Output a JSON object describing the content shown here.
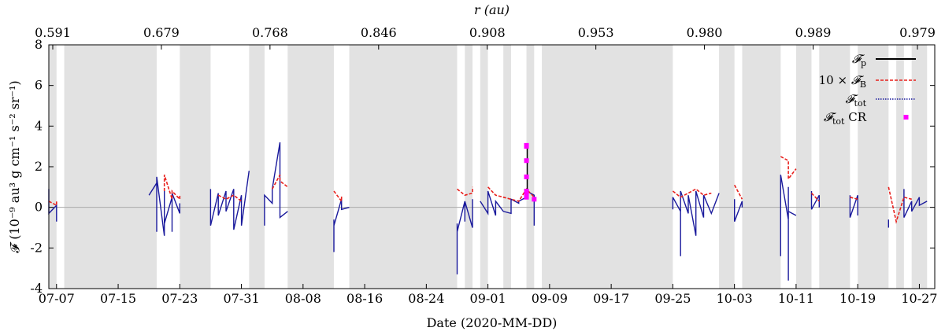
{
  "chart_data": {
    "type": "line",
    "xlabel": "Date (2020-MM-DD)",
    "ylabel": "𝓕 (10⁻⁹ au³ g cm⁻¹ s⁻² sr⁻¹)",
    "top_axis_label": "r (au)",
    "x_range": [
      "2020-07-06",
      "2020-10-29"
    ],
    "ylim": [
      -4,
      8
    ],
    "y_ticks": [
      -4,
      -2,
      0,
      2,
      4,
      6,
      8
    ],
    "x_ticks": [
      "07-07",
      "07-15",
      "07-23",
      "07-31",
      "08-08",
      "08-16",
      "08-24",
      "09-01",
      "09-09",
      "09-17",
      "09-25",
      "10-03",
      "10-11",
      "10-19",
      "10-27"
    ],
    "top_ticks": [
      "0.591",
      "0.679",
      "0.768",
      "0.846",
      "0.908",
      "0.953",
      "0.980",
      "0.989",
      "0.979"
    ],
    "zero_line": true,
    "legend_position": "top-right",
    "legend": [
      {
        "label_main": "𝓕",
        "label_sub": "p",
        "prefix": "",
        "style": "solid",
        "color": "#000000"
      },
      {
        "label_main": "𝓕",
        "label_sub": "B",
        "prefix": "10 × ",
        "style": "dashed",
        "color": "#e8201c"
      },
      {
        "label_main": "𝓕",
        "label_sub": "tot",
        "prefix": "",
        "style": "dotted",
        "color": "#1a1a9c"
      },
      {
        "label_main": "𝓕",
        "label_sub": "tot",
        "prefix": "",
        "suffix": " CR",
        "style": "marker",
        "color": "#ff00ff"
      }
    ],
    "shaded_intervals": [
      [
        "2020-07-06",
        "2020-07-07"
      ],
      [
        "2020-07-08",
        "2020-07-20"
      ],
      [
        "2020-07-23",
        "2020-07-27"
      ],
      [
        "2020-08-01",
        "2020-08-03"
      ],
      [
        "2020-08-06",
        "2020-08-12"
      ],
      [
        "2020-08-14",
        "2020-08-28"
      ],
      [
        "2020-08-29",
        "2020-08-30"
      ],
      [
        "2020-08-31",
        "2020-09-01"
      ],
      [
        "2020-09-03",
        "2020-09-04"
      ],
      [
        "2020-09-06",
        "2020-09-07"
      ],
      [
        "2020-09-08",
        "2020-09-25"
      ],
      [
        "2020-10-01",
        "2020-10-03"
      ],
      [
        "2020-10-04",
        "2020-10-09"
      ],
      [
        "2020-10-11",
        "2020-10-13"
      ],
      [
        "2020-10-14",
        "2020-10-18"
      ],
      [
        "2020-10-19",
        "2020-10-23"
      ],
      [
        "2020-10-24",
        "2020-10-25"
      ],
      [
        "2020-10-26",
        "2020-10-28"
      ]
    ],
    "series": [
      {
        "style": "dotted-blue",
        "segments": [
          {
            "x": [
              "2020-07-06",
              "2020-07-06",
              "2020-07-06",
              "2020-07-06",
              "2020-07-07",
              "2020-07-07",
              "2020-07-07",
              "2020-07-07"
            ],
            "y": [
              0.1,
              0.9,
              0.3,
              -0.3,
              0.1,
              -0.5,
              -0.3,
              -0.7
            ]
          },
          {
            "x": [
              "2020-07-19",
              "2020-07-20",
              "2020-07-20",
              "2020-07-20",
              "2020-07-21",
              "2020-07-21",
              "2020-07-21",
              "2020-07-22",
              "2020-07-22",
              "2020-07-22",
              "2020-07-23",
              "2020-07-23"
            ],
            "y": [
              0.6,
              1.2,
              -1.2,
              1.5,
              -1.4,
              0.9,
              -0.8,
              0.5,
              -1.2,
              0.7,
              -0.3,
              0.2
            ]
          },
          {
            "x": [
              "2020-07-27",
              "2020-07-27",
              "2020-07-28",
              "2020-07-28",
              "2020-07-29",
              "2020-07-29",
              "2020-07-30",
              "2020-07-30",
              "2020-07-31",
              "2020-07-31",
              "2020-08-01"
            ],
            "y": [
              0.9,
              -0.9,
              0.7,
              -0.4,
              0.8,
              -0.2,
              0.9,
              -1.1,
              0.6,
              -0.9,
              1.8
            ]
          },
          {
            "x": [
              "2020-08-03",
              "2020-08-03",
              "2020-08-04",
              "2020-08-04",
              "2020-08-05",
              "2020-08-05",
              "2020-08-05",
              "2020-08-06"
            ],
            "y": [
              -0.9,
              0.6,
              0.2,
              0.9,
              3.2,
              0.1,
              -0.5,
              -0.2
            ]
          },
          {
            "x": [
              "2020-08-12",
              "2020-08-12",
              "2020-08-12",
              "2020-08-13",
              "2020-08-13",
              "2020-08-14"
            ],
            "y": [
              -2.2,
              -0.6,
              -0.9,
              0.4,
              -0.1,
              0.0
            ]
          },
          {
            "x": [
              "2020-08-28",
              "2020-08-28",
              "2020-08-28",
              "2020-08-28",
              "2020-08-29",
              "2020-08-29",
              "2020-08-29",
              "2020-08-30",
              "2020-08-30"
            ],
            "y": [
              -0.8,
              -2.8,
              -3.3,
              -1.2,
              0.3,
              -0.7,
              0.3,
              -1.0,
              0.4
            ]
          },
          {
            "x": [
              "2020-08-31",
              "2020-09-01",
              "2020-09-01",
              "2020-09-02",
              "2020-09-02",
              "2020-09-03",
              "2020-09-04",
              "2020-09-04",
              "2020-09-05",
              "2020-09-05",
              "2020-09-06",
              "2020-09-06",
              "2020-09-07",
              "2020-09-07"
            ],
            "y": [
              0.3,
              -0.3,
              0.8,
              -0.4,
              0.3,
              -0.2,
              -0.3,
              0.4,
              0.2,
              0.3,
              0.5,
              0.8,
              0.6,
              -0.9
            ]
          },
          {
            "x": [
              "2020-09-25",
              "2020-09-25",
              "2020-09-26",
              "2020-09-26",
              "2020-09-26",
              "2020-09-27",
              "2020-09-27",
              "2020-09-28",
              "2020-09-28",
              "2020-09-29",
              "2020-09-29",
              "2020-09-30",
              "2020-10-01"
            ],
            "y": [
              -0.1,
              0.5,
              -0.2,
              -2.4,
              0.8,
              -0.3,
              0.6,
              -1.4,
              0.8,
              -0.5,
              0.6,
              -0.3,
              0.7
            ]
          },
          {
            "x": [
              "2020-10-03",
              "2020-10-03",
              "2020-10-04",
              "2020-10-04"
            ],
            "y": [
              0.4,
              -0.7,
              0.3,
              0.0
            ]
          },
          {
            "x": [
              "2020-10-09",
              "2020-10-09",
              "2020-10-09",
              "2020-10-10",
              "2020-10-10",
              "2020-10-10",
              "2020-10-10",
              "2020-10-11"
            ],
            "y": [
              0.7,
              -2.4,
              1.6,
              -0.6,
              1.0,
              -3.6,
              -0.2,
              -0.4
            ]
          },
          {
            "x": [
              "2020-10-13",
              "2020-10-13",
              "2020-10-14",
              "2020-10-14"
            ],
            "y": [
              0.8,
              -0.1,
              0.6,
              0.0
            ]
          },
          {
            "x": [
              "2020-10-18",
              "2020-10-18",
              "2020-10-19",
              "2020-10-19"
            ],
            "y": [
              0.6,
              -0.5,
              0.6,
              -0.4
            ]
          },
          {
            "x": [
              "2020-10-23",
              "2020-10-23"
            ],
            "y": [
              -0.6,
              -1.0
            ]
          },
          {
            "x": [
              "2020-10-25",
              "2020-10-25",
              "2020-10-26",
              "2020-10-26",
              "2020-10-27",
              "2020-10-27",
              "2020-10-28"
            ],
            "y": [
              0.9,
              -0.5,
              0.3,
              -0.2,
              0.5,
              0.1,
              0.3
            ]
          }
        ]
      },
      {
        "style": "dashed-red",
        "segments": [
          {
            "x": [
              "2020-07-06",
              "2020-07-07",
              "2020-07-07",
              "2020-07-07"
            ],
            "y": [
              0.3,
              0.1,
              0.3,
              0.2
            ]
          },
          {
            "x": [
              "2020-07-21",
              "2020-07-21",
              "2020-07-22",
              "2020-07-22",
              "2020-07-23",
              "2020-07-23"
            ],
            "y": [
              0.8,
              1.6,
              0.4,
              0.8,
              0.4,
              0.6
            ]
          },
          {
            "x": [
              "2020-07-28",
              "2020-07-29",
              "2020-07-30",
              "2020-07-31"
            ],
            "y": [
              0.6,
              0.4,
              0.6,
              0.3
            ]
          },
          {
            "x": [
              "2020-08-04",
              "2020-08-05",
              "2020-08-05",
              "2020-08-06"
            ],
            "y": [
              0.9,
              1.6,
              1.3,
              1.0
            ]
          },
          {
            "x": [
              "2020-08-12",
              "2020-08-13",
              "2020-08-13"
            ],
            "y": [
              0.8,
              0.3,
              0.6
            ]
          },
          {
            "x": [
              "2020-08-28",
              "2020-08-29",
              "2020-08-30",
              "2020-08-30"
            ],
            "y": [
              0.9,
              0.6,
              0.7,
              1.0
            ]
          },
          {
            "x": [
              "2020-09-01",
              "2020-09-02",
              "2020-09-03",
              "2020-09-05",
              "2020-09-06",
              "2020-09-07"
            ],
            "y": [
              1.0,
              0.6,
              0.5,
              0.3,
              0.9,
              0.5
            ]
          },
          {
            "x": [
              "2020-09-25",
              "2020-09-26",
              "2020-09-28",
              "2020-09-29",
              "2020-09-30"
            ],
            "y": [
              0.8,
              0.5,
              0.9,
              0.6,
              0.7
            ]
          },
          {
            "x": [
              "2020-10-03",
              "2020-10-04"
            ],
            "y": [
              1.1,
              0.4
            ]
          },
          {
            "x": [
              "2020-10-09",
              "2020-10-10",
              "2020-10-10",
              "2020-10-11"
            ],
            "y": [
              2.5,
              2.3,
              1.4,
              1.9
            ]
          },
          {
            "x": [
              "2020-10-13",
              "2020-10-14"
            ],
            "y": [
              0.7,
              0.3
            ]
          },
          {
            "x": [
              "2020-10-18",
              "2020-10-19"
            ],
            "y": [
              0.5,
              0.4
            ]
          },
          {
            "x": [
              "2020-10-23",
              "2020-10-24",
              "2020-10-25",
              "2020-10-26"
            ],
            "y": [
              1.0,
              -0.7,
              0.5,
              0.4
            ]
          }
        ]
      }
    ],
    "cr_markers": {
      "x": [
        "2020-09-06",
        "2020-09-06",
        "2020-09-06",
        "2020-09-06",
        "2020-09-06",
        "2020-09-06",
        "2020-09-07",
        "2020-09-06",
        "2020-09-06"
      ],
      "y": [
        3.0,
        2.3,
        1.5,
        0.8,
        0.6,
        0.5,
        0.4,
        0.7,
        3.05
      ]
    }
  }
}
